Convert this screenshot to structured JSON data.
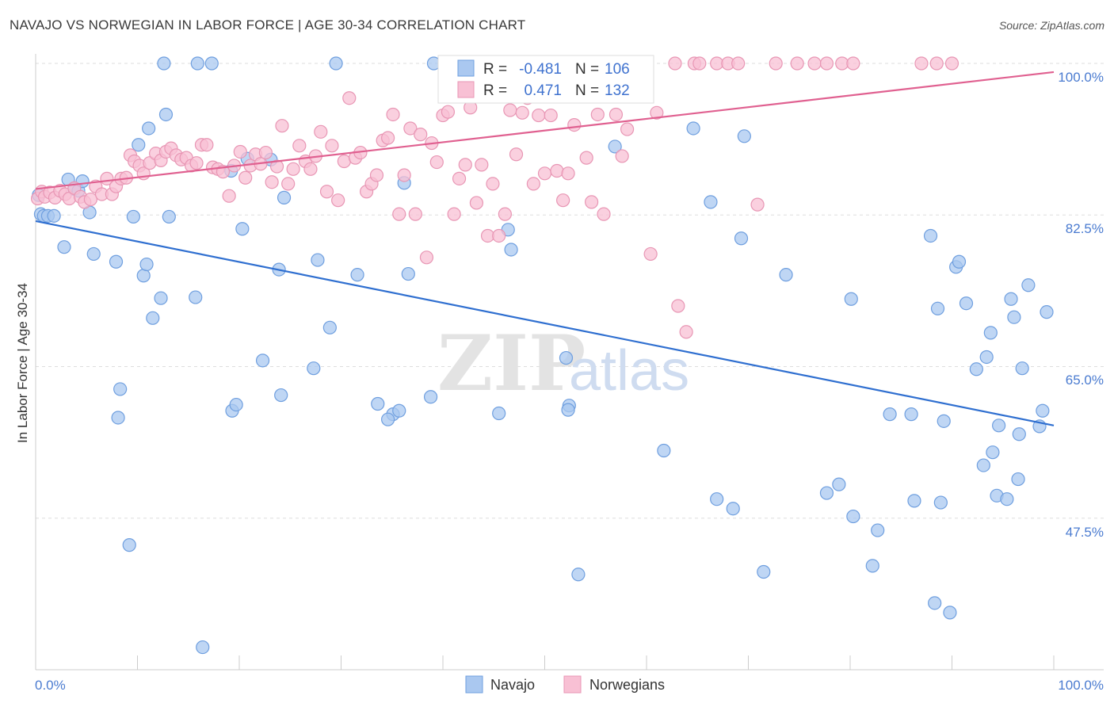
{
  "chart_data": {
    "type": "scatter",
    "title": "NAVAJO VS NORWEGIAN IN LABOR FORCE | AGE 30-34 CORRELATION CHART",
    "source": "Source: ZipAtlas.com",
    "xlabel": "",
    "ylabel": "In Labor Force | Age 30-34",
    "xlim": [
      0,
      100
    ],
    "ylim": [
      30,
      100
    ],
    "x_tick_labels": [
      "0.0%",
      "100.0%"
    ],
    "y_ticks": [
      {
        "value": 100,
        "label": "100.0%"
      },
      {
        "value": 82.5,
        "label": "82.5%"
      },
      {
        "value": 65,
        "label": "65.0%"
      },
      {
        "value": 47.5,
        "label": "47.5%"
      }
    ],
    "watermark": {
      "part1": "ZIP",
      "part2": "atlas"
    },
    "legend": {
      "items": [
        {
          "name": "Navajo",
          "r_label": "R =",
          "r_value": "-0.481",
          "n_label": "N =",
          "n_value": "106"
        },
        {
          "name": "Norwegians",
          "r_label": "R =",
          "r_value": "0.471",
          "n_label": "N =",
          "n_value": "132"
        }
      ]
    },
    "colors": {
      "navajo_fill": "#aac8f0",
      "navajo_stroke": "#6f9fdf",
      "navajo_line": "#2f6fd0",
      "norw_fill": "#f8c0d4",
      "norw_stroke": "#e896b4",
      "norw_line": "#e06090",
      "tick_text": "#4a7bd0",
      "grid": "#dddddd"
    },
    "series": [
      {
        "name": "Navajo",
        "trend": {
          "x": [
            0,
            100
          ],
          "y": [
            81.8,
            58.2
          ]
        },
        "points": [
          [
            0.3,
            84.8
          ],
          [
            0.5,
            82.6
          ],
          [
            0.8,
            82.4
          ],
          [
            1.2,
            82.4
          ],
          [
            1.8,
            82.4
          ],
          [
            3.2,
            86.6
          ],
          [
            3.8,
            85.5
          ],
          [
            4.2,
            85.3
          ],
          [
            4.6,
            86.4
          ],
          [
            5.3,
            82.8
          ],
          [
            2.8,
            78.8
          ],
          [
            5.7,
            78.0
          ],
          [
            7.9,
            77.1
          ],
          [
            8.3,
            62.4
          ],
          [
            8.1,
            59.1
          ],
          [
            9.2,
            44.4
          ],
          [
            9.6,
            82.3
          ],
          [
            10.1,
            90.6
          ],
          [
            10.6,
            75.5
          ],
          [
            10.9,
            76.8
          ],
          [
            11.1,
            92.5
          ],
          [
            11.5,
            70.6
          ],
          [
            12.3,
            72.9
          ],
          [
            12.6,
            100.0
          ],
          [
            12.8,
            94.1
          ],
          [
            13.1,
            82.3
          ],
          [
            15.7,
            73.0
          ],
          [
            15.9,
            100.0
          ],
          [
            16.4,
            32.6
          ],
          [
            17.3,
            100.0
          ],
          [
            19.2,
            87.6
          ],
          [
            19.3,
            59.9
          ],
          [
            19.7,
            60.6
          ],
          [
            20.3,
            80.9
          ],
          [
            20.8,
            89.0
          ],
          [
            22.3,
            65.7
          ],
          [
            23.1,
            88.9
          ],
          [
            23.9,
            76.2
          ],
          [
            24.1,
            61.7
          ],
          [
            24.4,
            84.5
          ],
          [
            27.3,
            64.8
          ],
          [
            27.7,
            77.3
          ],
          [
            28.9,
            69.5
          ],
          [
            29.5,
            100.0
          ],
          [
            31.6,
            75.6
          ],
          [
            33.6,
            60.7
          ],
          [
            35.1,
            59.5
          ],
          [
            35.7,
            59.9
          ],
          [
            36.2,
            86.2
          ],
          [
            36.6,
            75.7
          ],
          [
            38.8,
            61.5
          ],
          [
            39.1,
            100.0
          ],
          [
            40.5,
            100.0
          ],
          [
            45.5,
            59.6
          ],
          [
            46.4,
            80.8
          ],
          [
            46.7,
            78.5
          ],
          [
            52.1,
            66.0
          ],
          [
            52.4,
            60.5
          ],
          [
            56.9,
            90.4
          ],
          [
            61.7,
            55.3
          ],
          [
            64.6,
            92.5
          ],
          [
            66.3,
            84.0
          ],
          [
            66.9,
            49.7
          ],
          [
            68.5,
            48.6
          ],
          [
            69.3,
            79.8
          ],
          [
            69.6,
            91.6
          ],
          [
            71.5,
            41.3
          ],
          [
            73.7,
            75.6
          ],
          [
            77.7,
            50.4
          ],
          [
            78.9,
            51.4
          ],
          [
            80.1,
            72.8
          ],
          [
            80.3,
            47.7
          ],
          [
            82.2,
            42.0
          ],
          [
            82.7,
            46.1
          ],
          [
            83.9,
            59.5
          ],
          [
            86.0,
            59.5
          ],
          [
            86.3,
            49.5
          ],
          [
            87.9,
            80.1
          ],
          [
            88.3,
            37.7
          ],
          [
            88.6,
            71.7
          ],
          [
            88.9,
            49.3
          ],
          [
            89.2,
            58.7
          ],
          [
            89.8,
            36.6
          ],
          [
            90.4,
            76.5
          ],
          [
            90.7,
            77.1
          ],
          [
            91.4,
            72.3
          ],
          [
            92.4,
            64.7
          ],
          [
            93.1,
            53.6
          ],
          [
            93.4,
            66.1
          ],
          [
            93.8,
            68.9
          ],
          [
            94.0,
            55.1
          ],
          [
            94.4,
            50.1
          ],
          [
            94.6,
            58.2
          ],
          [
            95.4,
            49.7
          ],
          [
            95.8,
            72.8
          ],
          [
            96.1,
            70.7
          ],
          [
            96.5,
            52.0
          ],
          [
            96.6,
            57.2
          ],
          [
            96.9,
            64.8
          ],
          [
            97.5,
            74.4
          ],
          [
            98.6,
            58.1
          ],
          [
            98.9,
            59.9
          ],
          [
            99.3,
            71.3
          ],
          [
            52.3,
            60.0
          ],
          [
            53.3,
            41.0
          ],
          [
            34.6,
            58.9
          ]
        ]
      },
      {
        "name": "Norwegians",
        "trend": {
          "x": [
            0,
            100
          ],
          "y": [
            85.5,
            99.0
          ]
        },
        "points": [
          [
            0.2,
            84.4
          ],
          [
            0.6,
            85.2
          ],
          [
            0.9,
            84.6
          ],
          [
            1.4,
            85.1
          ],
          [
            1.9,
            84.5
          ],
          [
            2.4,
            85.3
          ],
          [
            2.9,
            84.9
          ],
          [
            3.3,
            84.4
          ],
          [
            3.8,
            85.6
          ],
          [
            4.4,
            84.6
          ],
          [
            4.8,
            84.0
          ],
          [
            5.4,
            84.3
          ],
          [
            5.9,
            85.8
          ],
          [
            6.5,
            84.9
          ],
          [
            7.0,
            86.7
          ],
          [
            7.5,
            84.9
          ],
          [
            7.9,
            85.8
          ],
          [
            8.4,
            86.7
          ],
          [
            8.9,
            86.8
          ],
          [
            9.3,
            89.4
          ],
          [
            9.7,
            88.7
          ],
          [
            10.2,
            88.2
          ],
          [
            10.6,
            87.3
          ],
          [
            11.2,
            88.5
          ],
          [
            11.8,
            89.6
          ],
          [
            12.3,
            88.8
          ],
          [
            12.8,
            89.8
          ],
          [
            13.3,
            90.2
          ],
          [
            13.8,
            89.4
          ],
          [
            14.3,
            88.9
          ],
          [
            14.8,
            89.1
          ],
          [
            15.3,
            88.2
          ],
          [
            15.8,
            88.5
          ],
          [
            16.3,
            90.6
          ],
          [
            16.8,
            90.6
          ],
          [
            17.4,
            88.0
          ],
          [
            17.9,
            87.8
          ],
          [
            18.4,
            87.5
          ],
          [
            19.0,
            84.7
          ],
          [
            19.5,
            88.2
          ],
          [
            20.1,
            89.8
          ],
          [
            20.6,
            86.8
          ],
          [
            21.1,
            88.2
          ],
          [
            21.6,
            89.5
          ],
          [
            22.1,
            88.4
          ],
          [
            22.6,
            89.7
          ],
          [
            23.2,
            86.3
          ],
          [
            23.7,
            88.1
          ],
          [
            24.2,
            92.8
          ],
          [
            24.8,
            86.1
          ],
          [
            25.3,
            87.8
          ],
          [
            25.9,
            90.5
          ],
          [
            26.5,
            88.7
          ],
          [
            27.0,
            87.8
          ],
          [
            27.5,
            89.3
          ],
          [
            28.0,
            92.1
          ],
          [
            28.6,
            85.2
          ],
          [
            29.1,
            90.5
          ],
          [
            29.7,
            84.2
          ],
          [
            30.3,
            88.7
          ],
          [
            30.8,
            96.0
          ],
          [
            31.4,
            89.1
          ],
          [
            31.9,
            89.7
          ],
          [
            32.5,
            85.2
          ],
          [
            33.0,
            86.1
          ],
          [
            33.5,
            87.1
          ],
          [
            34.1,
            91.1
          ],
          [
            34.6,
            91.4
          ],
          [
            35.1,
            94.1
          ],
          [
            35.7,
            82.6
          ],
          [
            36.2,
            87.1
          ],
          [
            36.8,
            92.5
          ],
          [
            37.3,
            82.6
          ],
          [
            37.8,
            91.8
          ],
          [
            38.4,
            77.6
          ],
          [
            38.9,
            90.8
          ],
          [
            39.4,
            88.6
          ],
          [
            40.0,
            94.0
          ],
          [
            40.5,
            94.4
          ],
          [
            41.1,
            82.6
          ],
          [
            41.6,
            86.7
          ],
          [
            42.2,
            88.3
          ],
          [
            42.7,
            94.9
          ],
          [
            43.3,
            83.9
          ],
          [
            43.8,
            88.3
          ],
          [
            44.4,
            80.1
          ],
          [
            44.9,
            86.1
          ],
          [
            45.5,
            80.1
          ],
          [
            46.1,
            82.6
          ],
          [
            46.6,
            94.6
          ],
          [
            47.2,
            89.5
          ],
          [
            47.8,
            94.3
          ],
          [
            48.3,
            96.0
          ],
          [
            48.9,
            86.1
          ],
          [
            49.4,
            94.0
          ],
          [
            50.0,
            87.3
          ],
          [
            50.6,
            94.0
          ],
          [
            51.2,
            87.6
          ],
          [
            51.8,
            84.2
          ],
          [
            52.3,
            87.3
          ],
          [
            52.9,
            92.9
          ],
          [
            53.5,
            96.6
          ],
          [
            54.1,
            89.1
          ],
          [
            54.6,
            84.0
          ],
          [
            55.2,
            94.1
          ],
          [
            55.8,
            82.6
          ],
          [
            56.4,
            96.6
          ],
          [
            57.0,
            94.1
          ],
          [
            57.6,
            89.3
          ],
          [
            58.1,
            92.4
          ],
          [
            58.7,
            100.0
          ],
          [
            59.3,
            100.0
          ],
          [
            60.4,
            78.0
          ],
          [
            61.0,
            94.3
          ],
          [
            62.8,
            100.0
          ],
          [
            63.1,
            72.0
          ],
          [
            63.9,
            69.0
          ],
          [
            64.7,
            100.0
          ],
          [
            65.2,
            100.0
          ],
          [
            66.9,
            100.0
          ],
          [
            68.0,
            100.0
          ],
          [
            69.0,
            100.0
          ],
          [
            70.9,
            83.7
          ],
          [
            72.7,
            100.0
          ],
          [
            74.8,
            100.0
          ],
          [
            76.5,
            100.0
          ],
          [
            77.7,
            100.0
          ],
          [
            79.2,
            100.0
          ],
          [
            80.3,
            100.0
          ],
          [
            87.0,
            100.0
          ],
          [
            88.5,
            100.0
          ],
          [
            90.0,
            100.0
          ]
        ]
      }
    ]
  }
}
